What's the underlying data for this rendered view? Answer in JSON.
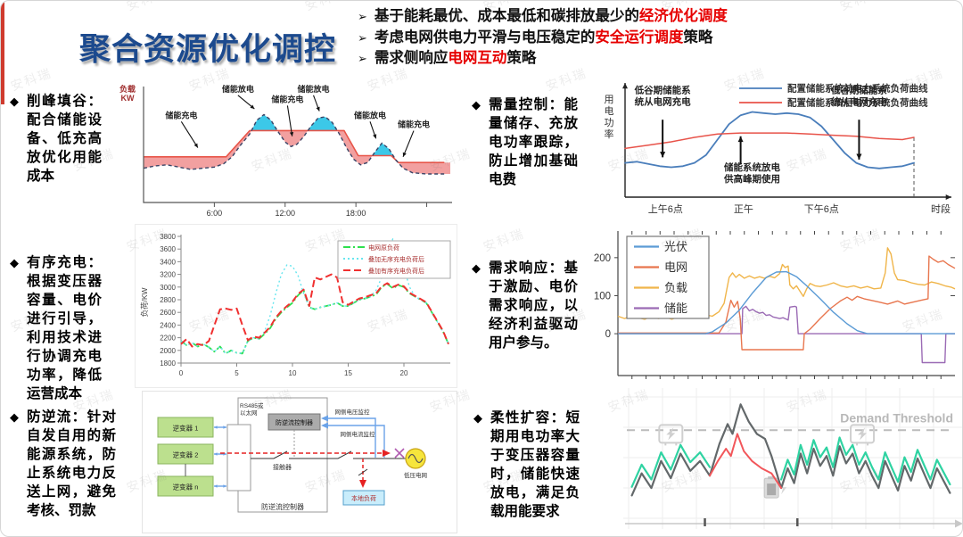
{
  "watermark": "安科瑞",
  "title": "聚合资源优化调控",
  "icons": {
    "bullet_arrow": "➢",
    "bullet_diamond": "◆"
  },
  "header_bullets": [
    {
      "pre": "基于能耗最优、成本最低和碳排放最少的",
      "highlight": "经济优化调度",
      "post": ""
    },
    {
      "pre": "考虑电网供电力平滑与电压稳定的",
      "highlight": "安全运行调度",
      "post": "策略"
    },
    {
      "pre": "需求侧响应",
      "highlight": "电网互动",
      "post": "策略"
    }
  ],
  "sections": [
    {
      "term": "削峰填谷：",
      "desc": "配合储能设备、低充高放优化用能成本"
    },
    {
      "term": "有序充电：",
      "desc": "根据变压器容量、电价进行引导，利用技术进行协调充电功率，降低运营成本"
    },
    {
      "term": "防逆流：",
      "desc": "针对自发自用的新能源系统，防止系统电力反送上网，避免考核、罚款"
    },
    {
      "term": "需量控制：",
      "desc": "能量储存、充放电功率跟踪，防止增加基础电费"
    },
    {
      "term": "需求响应：",
      "desc": "基于激励、电价需求响应，以经济利益驱动用户参与。"
    },
    {
      "term": "柔性扩容：",
      "desc": "短期用电功率大于变压器容量时，储能快速放电，满足负载用能要求"
    }
  ],
  "chart_data": [
    {
      "name": "peak-shaving",
      "type": "area",
      "title": "",
      "ylabel": "负载\nKW",
      "xlim": [
        0,
        26
      ],
      "ylim": [
        0,
        100
      ],
      "xticks": [
        {
          "x": 6,
          "label": "6:00"
        },
        {
          "x": 12,
          "label": "12:00"
        },
        {
          "x": 18,
          "label": "18:00"
        }
      ],
      "fill_charge": "#f2a0a0",
      "fill_discharge": "#3cc8e8",
      "series": [
        {
          "name": "original-load",
          "color": "#3a4466",
          "x": [
            0,
            1,
            2,
            3,
            4,
            5,
            6,
            6.8,
            7.5,
            8.2,
            9,
            9.6,
            10.2,
            10.8,
            11.4,
            12,
            12.5,
            13,
            13.6,
            14.2,
            14.8,
            15.4,
            16,
            16.6,
            17.2,
            17.8,
            18.4,
            19,
            19.6,
            20.2,
            20.8,
            21.4,
            22,
            22.8,
            24,
            25.5
          ],
          "y": [
            30,
            32,
            33,
            31,
            29,
            30,
            31,
            34,
            40,
            50,
            60,
            72,
            77,
            72,
            62,
            53,
            49,
            51,
            58,
            67,
            74,
            75,
            70,
            60,
            48,
            38,
            33,
            35,
            44,
            52,
            47,
            37,
            30,
            26,
            25,
            25
          ]
        },
        {
          "name": "flattened-load",
          "color": "#e85549",
          "x": [
            0,
            7,
            9,
            17,
            18.2,
            21,
            21.6,
            25.5
          ],
          "y": [
            40,
            40,
            63,
            63,
            41,
            41,
            35,
            35
          ]
        }
      ],
      "annotations": [
        {
          "text": "储能充电",
          "tx": 3.2,
          "ty": 74,
          "ax": 4.6,
          "ay": 48
        },
        {
          "text": "储能放电",
          "tx": 8.0,
          "ty": 97,
          "ax": 9.4,
          "ay": 82
        },
        {
          "text": "储能充电",
          "tx": 12.2,
          "ty": 88,
          "ax": 12.6,
          "ay": 58
        },
        {
          "text": "储能放电",
          "tx": 14.4,
          "ty": 97,
          "ax": 14.9,
          "ay": 80
        },
        {
          "text": "储能放电",
          "tx": 19.2,
          "ty": 74,
          "ax": 19.7,
          "ay": 56
        },
        {
          "text": "储能充电",
          "tx": 22.9,
          "ty": 66,
          "ax": 22.0,
          "ay": 40
        }
      ]
    },
    {
      "name": "orderly-charging",
      "type": "line",
      "ylabel": "负荷/KW",
      "ylim": [
        1800,
        3800
      ],
      "xlim": [
        0,
        24
      ],
      "xticks": [
        0,
        5,
        10,
        15,
        20
      ],
      "x": [
        0,
        0.5,
        1,
        1.5,
        2,
        2.5,
        3,
        3.5,
        4,
        4.5,
        5,
        5.5,
        6,
        6.5,
        7,
        7.5,
        8,
        8.5,
        9,
        9.5,
        10,
        10.5,
        11,
        11.5,
        12,
        12.5,
        13,
        13.5,
        14,
        14.5,
        15,
        15.5,
        16,
        16.5,
        17,
        17.5,
        18,
        18.5,
        19,
        19.5,
        20,
        20.5,
        21,
        21.5,
        22,
        22.5,
        23,
        23.5,
        24
      ],
      "series": [
        {
          "name": "电网原负荷",
          "color": "#2ee04e",
          "dash": "8 3 2 3",
          "y": [
            2150,
            2080,
            2120,
            2060,
            2100,
            2050,
            1980,
            2060,
            1950,
            2000,
            1960,
            1950,
            2150,
            2200,
            2180,
            2260,
            2350,
            2500,
            2600,
            2680,
            2750,
            2870,
            2950,
            2680,
            2650,
            2680,
            2700,
            2720,
            2750,
            2700,
            2700,
            2750,
            2800,
            2820,
            2850,
            2880,
            3000,
            3050,
            2980,
            3030,
            3000,
            2900,
            2850,
            2800,
            2750,
            2600,
            2450,
            2300,
            2100
          ]
        },
        {
          "name": "叠加无序充电负荷后",
          "color": "#67e6ef",
          "dash": "2 3",
          "y": [
            2150,
            2080,
            2120,
            2060,
            2100,
            2050,
            1980,
            2060,
            1950,
            2000,
            1960,
            1950,
            2150,
            2200,
            2180,
            2300,
            2550,
            2900,
            3200,
            3350,
            3330,
            3180,
            2900,
            2680,
            2650,
            2680,
            2700,
            2720,
            2750,
            2700,
            2700,
            2750,
            2800,
            2820,
            2850,
            2950,
            3150,
            3500,
            3760,
            3650,
            3300,
            3000,
            2850,
            2800,
            2750,
            2600,
            2450,
            2300,
            2100
          ]
        },
        {
          "name": "叠加有序充电负荷后",
          "color": "#f03030",
          "dash": "8 4",
          "y": [
            2100,
            2180,
            2060,
            2100,
            2080,
            2150,
            2400,
            2650,
            2660,
            2640,
            2660,
            2400,
            2160,
            2220,
            2200,
            2280,
            2370,
            2520,
            2620,
            2700,
            2770,
            2890,
            2960,
            2700,
            3150,
            3120,
            3160,
            3200,
            3150,
            2760,
            2720,
            2770,
            2820,
            2840,
            2870,
            2900,
            3010,
            3060,
            3000,
            3040,
            3010,
            2910,
            2860,
            2810,
            2760,
            2610,
            2460,
            2310,
            2100
          ]
        }
      ]
    },
    {
      "name": "anti-backflow-diagram",
      "type": "diagram",
      "labels": {
        "inv1": "逆变器 1",
        "inv2": "逆变器 2",
        "invn": "逆变器 n",
        "controller": "防逆流控制器",
        "comm": "RS485或\n以太网",
        "vmon": "网侧电压监控",
        "cmon": "网侧电流监控",
        "contactor": "接触器",
        "outer": "防逆流控制器",
        "grid": "低压电网",
        "load": "本地负荷"
      }
    },
    {
      "name": "demand-control",
      "type": "line",
      "ylabel": "用电功率",
      "xlabel": "时段",
      "xticks": [
        {
          "x": 14,
          "label": "上午6点"
        },
        {
          "x": 41,
          "label": "正午"
        },
        {
          "x": 68,
          "label": "下午6点"
        }
      ],
      "legend": [
        {
          "label": "配置储能系统前电力系统负荷曲线",
          "color": "#4a7ebb"
        },
        {
          "label": "配置储能系统后电力系统负荷曲线",
          "color": "#e8534a"
        }
      ],
      "series": [
        {
          "name": "before-storage",
          "color": "#4a7ebb",
          "x": [
            0,
            4,
            8,
            12,
            16,
            20,
            24,
            28,
            32,
            36,
            40,
            44,
            48,
            52,
            56,
            60,
            64,
            68,
            72,
            76,
            80,
            84,
            88,
            92,
            96,
            100
          ],
          "y": [
            31,
            32,
            30,
            28,
            27,
            28,
            31,
            38,
            52,
            66,
            74,
            77,
            76,
            75,
            76,
            75,
            72,
            64,
            52,
            40,
            31,
            27,
            26,
            27,
            28,
            31
          ]
        },
        {
          "name": "after-storage",
          "color": "#e8534a",
          "x": [
            0,
            8,
            16,
            24,
            32,
            40,
            48,
            56,
            64,
            72,
            80,
            88,
            96,
            100
          ],
          "y": [
            44,
            47,
            50,
            54,
            57,
            58,
            58,
            58,
            57,
            56,
            55,
            53,
            52,
            54
          ]
        }
      ],
      "annotations": [
        {
          "text": "低谷期储能系\n统从电网充电",
          "tx": 13,
          "ty": 94,
          "ax": 13,
          "ay1": 70,
          "ay2": 36
        },
        {
          "text": "储能系统放电\n供高峰期使用",
          "tx": 44,
          "ty": 24,
          "ax": 40,
          "ay1": 30,
          "ay2": 55
        },
        {
          "text": "低谷期储能系\n统从电网充电",
          "tx": 81,
          "ty": 94,
          "ax": 81,
          "ay1": 70,
          "ay2": 34
        }
      ]
    },
    {
      "name": "demand-response",
      "type": "line",
      "ylim": [
        -110,
        270
      ],
      "yticks": [
        0,
        100,
        200
      ],
      "xlim": [
        0,
        100
      ],
      "series": [
        {
          "name": "光伏",
          "color": "#5b9bd5",
          "x": [
            0,
            26,
            28,
            32,
            36,
            40,
            44,
            47,
            50,
            53,
            56,
            60,
            64,
            68,
            71,
            74,
            100
          ],
          "y": [
            0,
            0,
            5,
            28,
            62,
            108,
            148,
            162,
            163,
            150,
            126,
            92,
            56,
            26,
            8,
            0,
            0
          ]
        },
        {
          "name": "电网",
          "color": "#e8764e",
          "x": [
            0,
            30,
            32,
            33.5,
            34.5,
            35.5,
            36.3,
            36.8,
            43,
            49,
            55,
            55.3,
            57,
            60,
            63,
            66,
            68,
            69.5,
            71,
            73,
            75,
            78,
            80,
            83,
            85,
            88,
            90,
            92,
            92.3,
            93.5,
            95,
            96.5,
            98,
            100
          ],
          "y": [
            2,
            2,
            30,
            88,
            70,
            85,
            40,
            -42,
            -42,
            -42,
            -42,
            0,
            12,
            40,
            66,
            86,
            96,
            88,
            98,
            92,
            88,
            82,
            78,
            86,
            78,
            84,
            88,
            92,
            204,
            196,
            188,
            192,
            182,
            172
          ]
        },
        {
          "name": "负载",
          "color": "#f0b54a",
          "x": [
            0,
            2,
            4,
            6,
            8,
            10,
            12,
            14,
            16,
            18,
            20,
            22,
            24,
            26,
            28,
            30,
            31.5,
            33,
            34,
            35,
            36,
            37.5,
            39,
            40.5,
            42,
            43.5,
            45,
            46.5,
            48,
            48.8,
            49.6,
            50.5,
            51,
            52,
            53,
            54,
            55,
            56,
            57,
            58.5,
            60,
            62,
            64,
            66,
            68,
            70,
            72,
            74,
            76,
            78,
            79.3,
            80,
            81,
            82,
            83,
            85,
            87,
            89,
            91,
            93,
            95,
            97,
            99,
            100
          ],
          "y": [
            46,
            40,
            48,
            42,
            38,
            46,
            40,
            44,
            38,
            45,
            41,
            47,
            43,
            50,
            46,
            58,
            80,
            148,
            160,
            148,
            156,
            146,
            152,
            146,
            150,
            146,
            151,
            147,
            158,
            182,
            174,
            178,
            128,
            118,
            126,
            112,
            98,
            118,
            132,
            126,
            124,
            128,
            134,
            126,
            122,
            126,
            120,
            124,
            118,
            120,
            160,
            226,
            210,
            160,
            142,
            140,
            134,
            130,
            128,
            136,
            132,
            126,
            122,
            118
          ]
        },
        {
          "name": "储能",
          "color": "#9b6bb5",
          "x": [
            0,
            36.8,
            37,
            38,
            39,
            40,
            41,
            42,
            43,
            44,
            45,
            46,
            47,
            48,
            49,
            50,
            50.5,
            51,
            52.5,
            53,
            53.5,
            90,
            90.3,
            97,
            97.3,
            100
          ],
          "y": [
            0,
            0,
            66,
            72,
            60,
            64,
            58,
            54,
            56,
            48,
            50,
            44,
            42,
            40,
            42,
            38,
            36,
            70,
            72,
            70,
            0,
            0,
            -76,
            -76,
            0,
            0
          ]
        }
      ]
    },
    {
      "name": "flexible-expansion",
      "type": "line",
      "threshold_label": "Demand Threshold",
      "threshold_y": 27,
      "colors": {
        "gray": "#63686a",
        "green": "#2fd3a2",
        "red": "#f2565a"
      },
      "axis_ticks": [
        23.5,
        52
      ],
      "icons": [
        {
          "type": "pcs",
          "x": 13,
          "y": 30
        },
        {
          "type": "pcs",
          "x": 72,
          "y": 30
        },
        {
          "type": "battery",
          "x": 44,
          "y": 74
        }
      ],
      "gray": {
        "x": [
          1,
          4,
          7,
          10,
          13,
          16,
          19,
          22,
          25,
          28,
          30.5,
          32,
          34.5,
          37,
          39.5,
          42,
          44,
          47,
          49,
          51,
          53,
          55,
          57,
          59,
          61,
          63,
          65,
          67,
          69,
          71,
          73,
          75,
          77,
          79,
          81,
          83,
          85,
          87,
          89,
          91,
          93,
          95,
          97,
          99
        ],
        "y": [
          80,
          62,
          74,
          52,
          66,
          46,
          60,
          52,
          64,
          38,
          22,
          30,
          6,
          20,
          30,
          34,
          48,
          74,
          58,
          70,
          46,
          62,
          42,
          56,
          48,
          64,
          40,
          54,
          46,
          62,
          52,
          64,
          74,
          52,
          64,
          76,
          56,
          68,
          50,
          62,
          74,
          58,
          68,
          78
        ]
      },
      "red": {
        "x": [
          25,
          27.5,
          30,
          31.5,
          33.5,
          35.5,
          38,
          41,
          44,
          47
        ],
        "y": [
          64,
          52,
          42,
          48,
          30,
          44,
          52,
          58,
          62,
          74
        ]
      },
      "green_left": {
        "x": [
          1,
          4,
          7,
          10,
          13,
          16,
          19,
          22,
          25
        ],
        "y": [
          73,
          55,
          67,
          45,
          59,
          39,
          53,
          45,
          57
        ]
      },
      "green_right": {
        "x": [
          47,
          49,
          51,
          53,
          55,
          57,
          59,
          61,
          63,
          65,
          67,
          69,
          71,
          73,
          75,
          77,
          79,
          81,
          83,
          85,
          87,
          89,
          91,
          93,
          95,
          97,
          99
        ],
        "y": [
          67,
          51,
          63,
          39,
          55,
          35,
          49,
          41,
          57,
          33,
          47,
          39,
          55,
          45,
          57,
          67,
          45,
          57,
          69,
          49,
          61,
          43,
          55,
          67,
          51,
          61,
          71
        ]
      }
    }
  ]
}
